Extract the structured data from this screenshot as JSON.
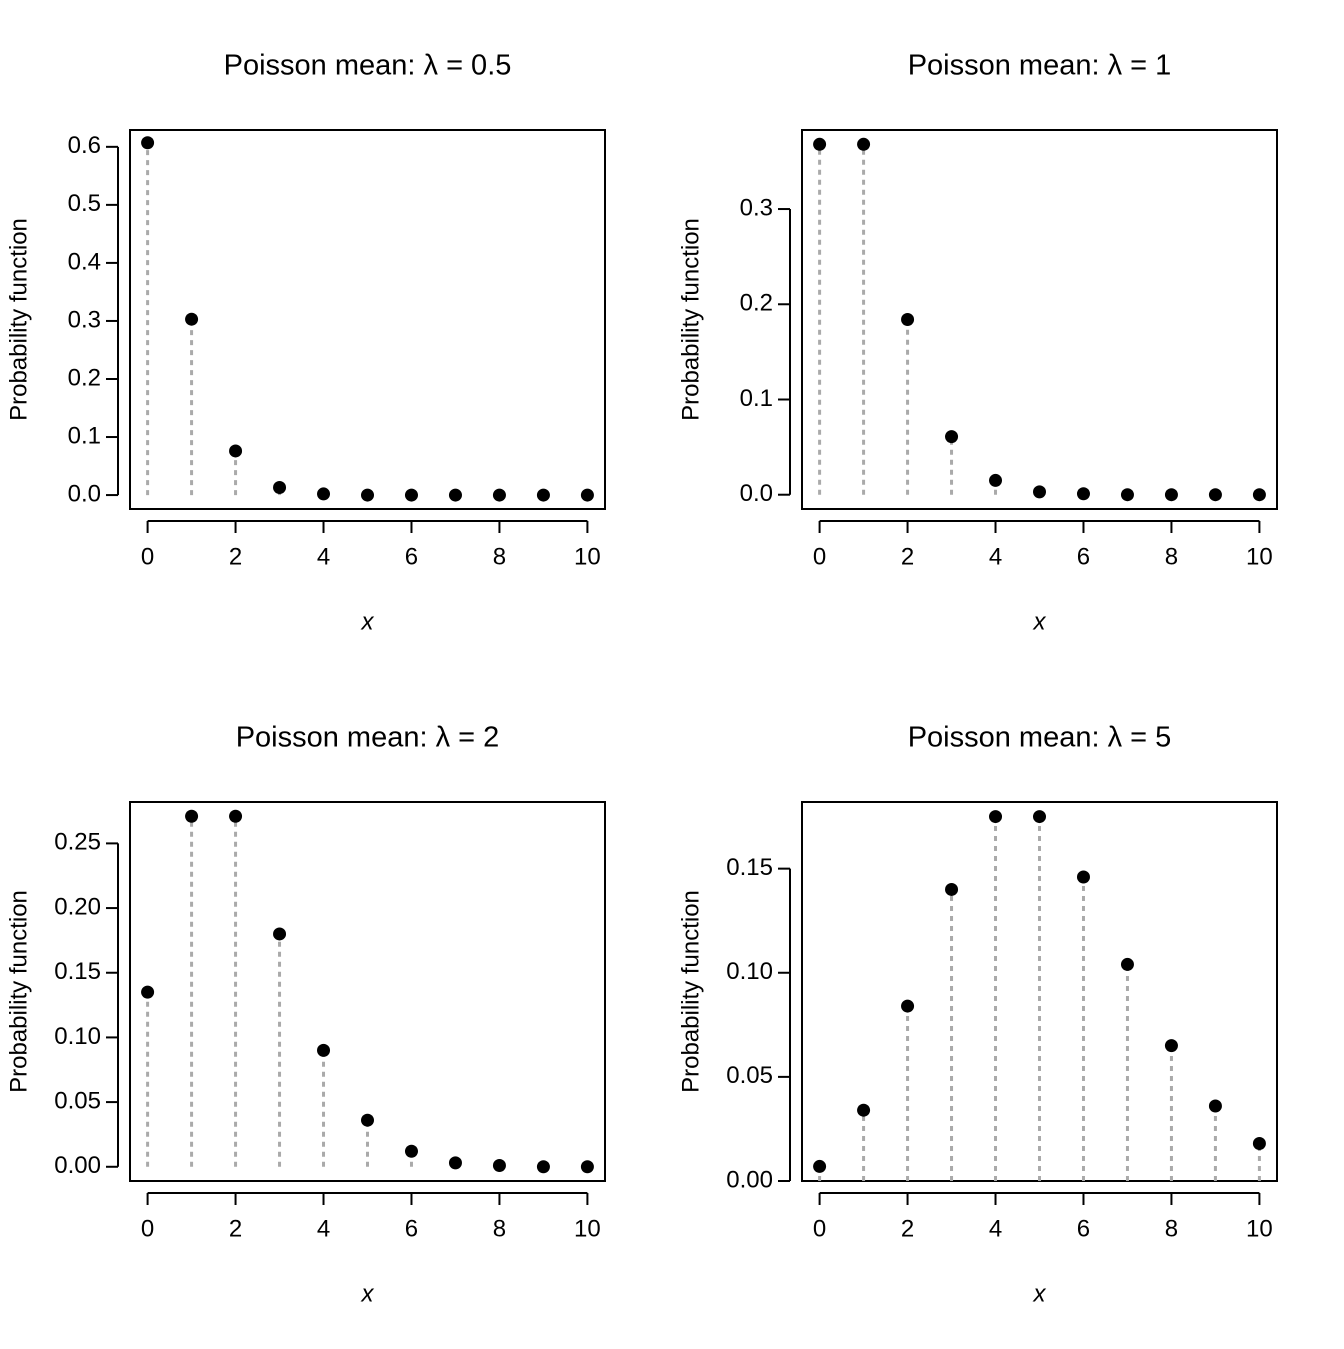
{
  "chart_data": [
    {
      "type": "stem",
      "title": "Poisson mean: λ = 0.5",
      "x_label": "x",
      "y_label": "Probability function",
      "x": [
        0,
        1,
        2,
        3,
        4,
        5,
        6,
        7,
        8,
        9,
        10
      ],
      "values": [
        0.607,
        0.303,
        0.076,
        0.013,
        0.002,
        0,
        0,
        0,
        0,
        0,
        0
      ],
      "xlim": [
        -0.4,
        10.4
      ],
      "ylim": [
        -0.024,
        0.629
      ],
      "xticks": [
        0,
        2,
        4,
        6,
        8,
        10
      ],
      "yticks": [
        {
          "value": 0,
          "label": "0.0"
        },
        0.1,
        0.2,
        0.3,
        0.4,
        0.5,
        0.6
      ],
      "color": "#000000",
      "stem_color": "#aaaaaa"
    },
    {
      "type": "stem",
      "title": "Poisson mean: λ = 1",
      "x_label": "x",
      "y_label": "Probability function",
      "x": [
        0,
        1,
        2,
        3,
        4,
        5,
        6,
        7,
        8,
        9,
        10
      ],
      "values": [
        0.368,
        0.368,
        0.184,
        0.061,
        0.015,
        0.003,
        0.001,
        0,
        0,
        0,
        0
      ],
      "xlim": [
        -0.4,
        10.4
      ],
      "ylim": [
        -0.015,
        0.383
      ],
      "xticks": [
        0,
        2,
        4,
        6,
        8,
        10
      ],
      "yticks": [
        {
          "value": 0,
          "label": "0.0"
        },
        0.1,
        0.2,
        0.3
      ],
      "color": "#000000",
      "stem_color": "#aaaaaa"
    },
    {
      "type": "stem",
      "title": "Poisson mean: λ = 2",
      "x_label": "x",
      "y_label": "Probability function",
      "x": [
        0,
        1,
        2,
        3,
        4,
        5,
        6,
        7,
        8,
        9,
        10
      ],
      "values": [
        0.135,
        0.271,
        0.271,
        0.18,
        0.09,
        0.036,
        0.012,
        0.003,
        0.001,
        0,
        0
      ],
      "xlim": [
        -0.4,
        10.4
      ],
      "ylim": [
        -0.011,
        0.282
      ],
      "xticks": [
        0,
        2,
        4,
        6,
        8,
        10
      ],
      "yticks": [
        {
          "value": 0,
          "label": "0.00"
        },
        0.05,
        {
          "value": 0.1,
          "label": "0.10"
        },
        0.15,
        {
          "value": 0.2,
          "label": "0.20"
        },
        0.25
      ],
      "color": "#000000",
      "stem_color": "#aaaaaa"
    },
    {
      "type": "stem",
      "title": "Poisson mean: λ = 5",
      "x_label": "x",
      "y_label": "Probability function",
      "x": [
        0,
        1,
        2,
        3,
        4,
        5,
        6,
        7,
        8,
        9,
        10
      ],
      "values": [
        0.007,
        0.034,
        0.084,
        0.14,
        0.175,
        0.175,
        0.146,
        0.104,
        0.065,
        0.036,
        0.018
      ],
      "xlim": [
        -0.4,
        10.4
      ],
      "ylim": [
        0,
        0.182
      ],
      "xticks": [
        0,
        2,
        4,
        6,
        8,
        10
      ],
      "yticks": [
        {
          "value": 0,
          "label": "0.00"
        },
        0.05,
        {
          "value": 0.1,
          "label": "0.10"
        },
        0.15
      ],
      "color": "#000000",
      "stem_color": "#aaaaaa"
    }
  ]
}
